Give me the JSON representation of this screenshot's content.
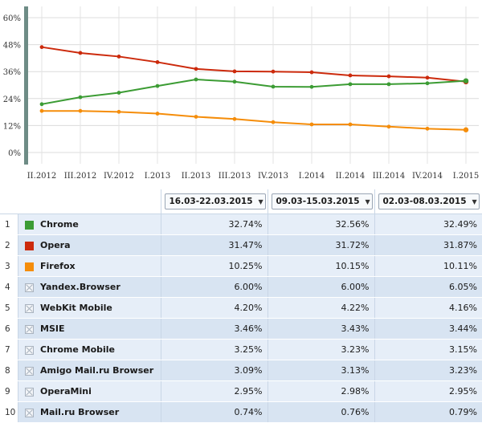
{
  "chart_data": {
    "type": "line",
    "categories": [
      "II.2012",
      "III.2012",
      "IV.2012",
      "I.2013",
      "II.2013",
      "III.2013",
      "IV.2013",
      "I.2014",
      "II.2014",
      "III.2014",
      "IV.2014",
      "I.2015"
    ],
    "y_ticks": [
      "0%",
      "12%",
      "24%",
      "36%",
      "48%",
      "60%"
    ],
    "ylim": [
      0,
      60
    ],
    "grid": true,
    "series": [
      {
        "name": "Opera",
        "color": "#cc2a0c",
        "values": [
          46.9,
          44.3,
          42.7,
          40.2,
          37.2,
          36.1,
          36.0,
          35.7,
          34.3,
          33.9,
          33.3,
          31.5
        ]
      },
      {
        "name": "Chrome",
        "color": "#3c9c34",
        "values": [
          21.5,
          24.6,
          26.6,
          29.6,
          32.5,
          31.5,
          29.3,
          29.2,
          30.4,
          30.4,
          30.8,
          31.9
        ]
      },
      {
        "name": "Firefox",
        "color": "#f58d0a",
        "values": [
          18.5,
          18.5,
          18.1,
          17.3,
          15.9,
          14.9,
          13.5,
          12.5,
          12.5,
          11.5,
          10.6,
          10.1
        ]
      }
    ]
  },
  "periods": [
    "16.03-22.03.2015",
    "09.03-15.03.2015",
    "02.03-08.03.2015"
  ],
  "rows": [
    {
      "rank": "1",
      "name": "Chrome",
      "color": "#3c9c34",
      "icon": "legend-square",
      "values": [
        "32.74%",
        "32.56%",
        "32.49%"
      ]
    },
    {
      "rank": "2",
      "name": "Opera",
      "color": "#cc2a0c",
      "icon": "legend-square",
      "values": [
        "31.47%",
        "31.72%",
        "31.87%"
      ]
    },
    {
      "rank": "3",
      "name": "Firefox",
      "color": "#f58d0a",
      "icon": "legend-square",
      "values": [
        "10.25%",
        "10.15%",
        "10.11%"
      ]
    },
    {
      "rank": "4",
      "name": "Yandex.Browser",
      "icon": "empty-checkbox",
      "values": [
        "6.00%",
        "6.00%",
        "6.05%"
      ]
    },
    {
      "rank": "5",
      "name": "WebKit Mobile",
      "icon": "empty-checkbox",
      "values": [
        "4.20%",
        "4.22%",
        "4.16%"
      ]
    },
    {
      "rank": "6",
      "name": "MSIE",
      "icon": "empty-checkbox",
      "values": [
        "3.46%",
        "3.43%",
        "3.44%"
      ]
    },
    {
      "rank": "7",
      "name": "Chrome Mobile",
      "icon": "empty-checkbox",
      "values": [
        "3.25%",
        "3.23%",
        "3.15%"
      ]
    },
    {
      "rank": "8",
      "name": "Amigo Mail.ru Browser",
      "icon": "empty-checkbox",
      "values": [
        "3.09%",
        "3.13%",
        "3.23%"
      ]
    },
    {
      "rank": "9",
      "name": "OperaMini",
      "icon": "empty-checkbox",
      "values": [
        "2.95%",
        "2.98%",
        "2.95%"
      ]
    },
    {
      "rank": "10",
      "name": "Mail.ru Browser",
      "icon": "empty-checkbox",
      "values": [
        "0.74%",
        "0.76%",
        "0.79%"
      ]
    }
  ]
}
